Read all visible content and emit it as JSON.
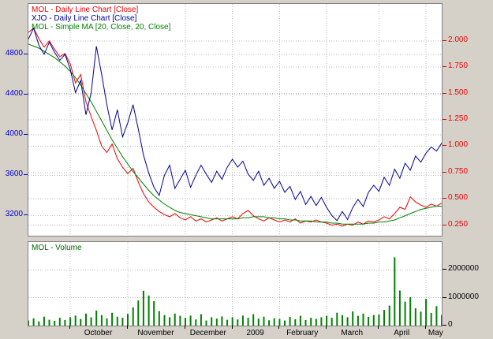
{
  "colors": {
    "background": "#d5d1c9",
    "pane_background": "#ffffff",
    "pane_border": "#808080",
    "grid": "#b9b9b9",
    "mol_red": "#ee0000",
    "xjo_blue": "#000096",
    "ma_green": "#008000",
    "volume_green": "#008000",
    "axis_black": "#000000"
  },
  "chart_data": {
    "type": "line",
    "n_points": 80,
    "x_axis": {
      "color": "#000000",
      "months": [
        {
          "label": "October",
          "start": 8
        },
        {
          "label": "November",
          "start": 19
        },
        {
          "label": "December",
          "start": 30
        },
        {
          "label": "2009",
          "start": 39
        },
        {
          "label": "February",
          "start": 48
        },
        {
          "label": "March",
          "start": 57
        },
        {
          "label": "April",
          "start": 67
        },
        {
          "label": "May",
          "start": 76
        }
      ]
    },
    "price_pane": {
      "legend": [
        {
          "label": "MOL - Daily Line Chart [Close]",
          "color": "#ee0000"
        },
        {
          "label": "XJO - Daily Line Chart [Close]",
          "color": "#000096"
        },
        {
          "label": "MOL - Simple MA [20, Close, 20, Close]",
          "color": "#008000"
        }
      ],
      "left_axis": {
        "min": 3000,
        "max": 5300,
        "color": "#0000cc",
        "ticks": [
          {
            "v": 4800,
            "label": "4800"
          },
          {
            "v": 4400,
            "label": "4400"
          },
          {
            "v": 4000,
            "label": "4000"
          },
          {
            "v": 3600,
            "label": "3600"
          },
          {
            "v": 3200,
            "label": "3200"
          }
        ]
      },
      "right_axis": {
        "min": 0.15,
        "max": 2.35,
        "color": "#ee0000",
        "ticks": [
          {
            "v": 2.0,
            "label": "2.000"
          },
          {
            "v": 1.75,
            "label": "1.750"
          },
          {
            "v": 1.5,
            "label": "1.500"
          },
          {
            "v": 1.25,
            "label": "1.250"
          },
          {
            "v": 1.0,
            "label": "1.000"
          },
          {
            "v": 0.75,
            "label": "0.750"
          },
          {
            "v": 0.5,
            "label": "0.500"
          },
          {
            "v": 0.25,
            "label": "0.250"
          }
        ]
      },
      "series": [
        {
          "name": "MOL Close",
          "axis": "right",
          "color": "#ee0000",
          "values": [
            2.08,
            2.12,
            2.02,
            1.94,
            2.0,
            1.92,
            1.85,
            1.88,
            1.78,
            1.6,
            1.68,
            1.42,
            1.28,
            1.15,
            1.0,
            0.94,
            1.02,
            0.88,
            0.8,
            0.74,
            0.79,
            0.66,
            0.55,
            0.47,
            0.42,
            0.38,
            0.35,
            0.33,
            0.36,
            0.32,
            0.3,
            0.33,
            0.29,
            0.31,
            0.28,
            0.3,
            0.32,
            0.29,
            0.31,
            0.33,
            0.31,
            0.36,
            0.39,
            0.34,
            0.31,
            0.29,
            0.32,
            0.3,
            0.28,
            0.3,
            0.28,
            0.31,
            0.27,
            0.29,
            0.28,
            0.3,
            0.28,
            0.27,
            0.25,
            0.26,
            0.24,
            0.26,
            0.25,
            0.28,
            0.26,
            0.29,
            0.28,
            0.3,
            0.33,
            0.31,
            0.36,
            0.42,
            0.4,
            0.52,
            0.47,
            0.44,
            0.42,
            0.45,
            0.43,
            0.46
          ]
        },
        {
          "name": "MOL Simple MA 20",
          "axis": "right",
          "color": "#008000",
          "values": [
            1.97,
            1.95,
            1.93,
            1.9,
            1.87,
            1.84,
            1.8,
            1.76,
            1.71,
            1.65,
            1.58,
            1.5,
            1.42,
            1.33,
            1.24,
            1.15,
            1.06,
            0.98,
            0.9,
            0.83,
            0.76,
            0.7,
            0.64,
            0.58,
            0.53,
            0.49,
            0.45,
            0.42,
            0.39,
            0.37,
            0.36,
            0.35,
            0.34,
            0.33,
            0.32,
            0.31,
            0.31,
            0.31,
            0.31,
            0.31,
            0.31,
            0.32,
            0.32,
            0.33,
            0.33,
            0.33,
            0.32,
            0.32,
            0.31,
            0.31,
            0.3,
            0.3,
            0.29,
            0.29,
            0.29,
            0.28,
            0.28,
            0.28,
            0.27,
            0.27,
            0.26,
            0.26,
            0.26,
            0.26,
            0.26,
            0.27,
            0.27,
            0.28,
            0.28,
            0.29,
            0.3,
            0.32,
            0.34,
            0.36,
            0.38,
            0.4,
            0.41,
            0.42,
            0.43,
            0.43
          ]
        },
        {
          "name": "XJO Close",
          "axis": "left",
          "color": "#000096",
          "values": [
            4950,
            5060,
            4890,
            4800,
            4920,
            4820,
            4740,
            4800,
            4650,
            4420,
            4540,
            4200,
            4420,
            4880,
            4600,
            4300,
            4050,
            4250,
            3980,
            4120,
            4300,
            4060,
            3800,
            3620,
            3480,
            3400,
            3600,
            3700,
            3470,
            3560,
            3650,
            3480,
            3600,
            3700,
            3610,
            3530,
            3640,
            3560,
            3680,
            3760,
            3680,
            3740,
            3610,
            3550,
            3640,
            3500,
            3570,
            3470,
            3540,
            3430,
            3490,
            3360,
            3440,
            3310,
            3390,
            3300,
            3380,
            3280,
            3200,
            3150,
            3240,
            3160,
            3280,
            3360,
            3290,
            3430,
            3500,
            3440,
            3580,
            3500,
            3660,
            3570,
            3720,
            3650,
            3790,
            3730,
            3820,
            3880,
            3840,
            3920
          ]
        }
      ]
    },
    "volume_pane": {
      "label": {
        "text": "MOL - Volume",
        "color": "#006600"
      },
      "axis": {
        "min": 0,
        "max": 3000000,
        "color": "#000000",
        "ticks": [
          {
            "v": 2000000,
            "label": "2000000"
          },
          {
            "v": 1000000,
            "label": "1000000"
          },
          {
            "v": 0,
            "label": "0"
          }
        ]
      },
      "bars": {
        "color": "#008000",
        "values": [
          180000,
          260000,
          150000,
          320000,
          210000,
          170000,
          280000,
          200000,
          300000,
          360000,
          240000,
          430000,
          300000,
          540000,
          380000,
          260000,
          460000,
          320000,
          280000,
          420000,
          650000,
          900000,
          1250000,
          1080000,
          880000,
          520000,
          380000,
          300000,
          430000,
          350000,
          280000,
          360000,
          220000,
          410000,
          180000,
          300000,
          250000,
          330000,
          210000,
          300000,
          220000,
          360000,
          280000,
          410000,
          250000,
          320000,
          190000,
          260000,
          240000,
          180000,
          310000,
          230000,
          350000,
          200000,
          280000,
          240000,
          300000,
          350000,
          280000,
          460000,
          380000,
          300000,
          510000,
          350000,
          430000,
          310000,
          380000,
          400000,
          560000,
          720000,
          2450000,
          1260000,
          860000,
          1020000,
          620000,
          500000,
          960000,
          450000,
          700000,
          380000
        ]
      }
    }
  }
}
